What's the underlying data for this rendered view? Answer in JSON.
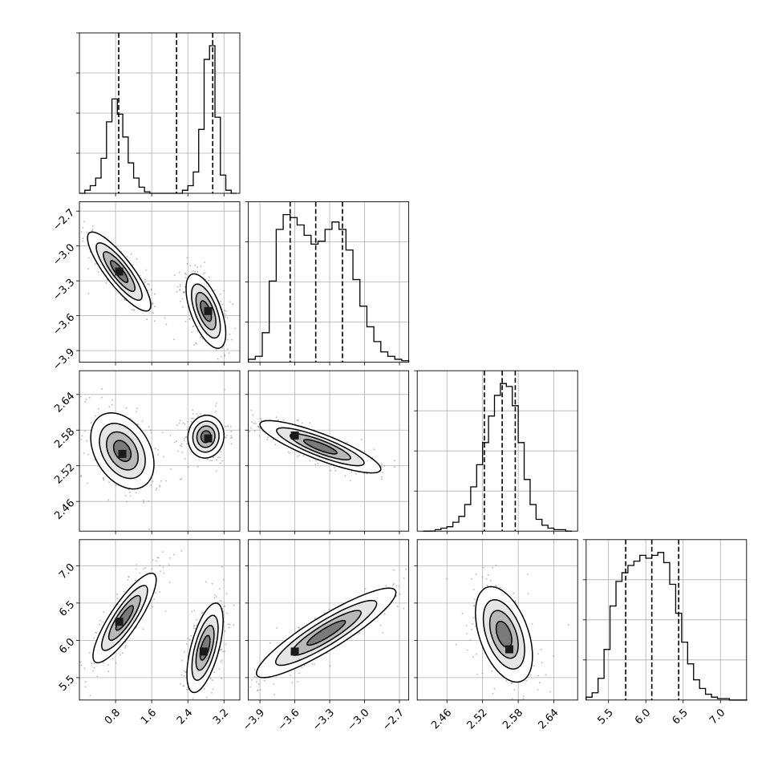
{
  "chart_data": {
    "type": "corner",
    "grid": true,
    "params": [
      {
        "range": [
          0.0,
          3.55
        ],
        "ticks": [
          "0.8",
          "1.6",
          "2.4",
          "3.2"
        ],
        "quantiles": [
          0.87,
          2.15,
          2.95
        ],
        "hist_bins": [
          0.06,
          0.18,
          0.3,
          0.42,
          0.54,
          0.66,
          0.78,
          0.9,
          1.02,
          1.14,
          1.26,
          1.38,
          1.5,
          1.62,
          1.74,
          1.86,
          1.98,
          2.1,
          2.22,
          2.34,
          2.46,
          2.58,
          2.7,
          2.82,
          2.94,
          3.06,
          3.18,
          3.3,
          3.42
        ],
        "hist_counts": [
          0,
          0.02,
          0.05,
          0.1,
          0.23,
          0.47,
          0.62,
          0.52,
          0.37,
          0.2,
          0.1,
          0.04,
          0.01,
          0,
          0,
          0,
          0,
          0,
          0,
          0.02,
          0.05,
          0.14,
          0.42,
          0.88,
          0.97,
          0.5,
          0.12,
          0.02,
          0
        ]
      },
      {
        "range": [
          -4.0,
          -2.62
        ],
        "ticks": [
          "−3.9",
          "−3.6",
          "−3.3",
          "−3.0",
          "−2.7"
        ],
        "quantiles": [
          -3.64,
          -3.42,
          -3.19
        ],
        "hist_bins": [
          -3.97,
          -3.91,
          -3.85,
          -3.79,
          -3.73,
          -3.67,
          -3.61,
          -3.55,
          -3.49,
          -3.43,
          -3.37,
          -3.31,
          -3.25,
          -3.19,
          -3.13,
          -3.07,
          -3.01,
          -2.95,
          -2.89,
          -2.83,
          -2.77,
          -2.71,
          -2.65
        ],
        "hist_counts": [
          0.02,
          0.04,
          0.2,
          0.55,
          0.9,
          1.0,
          0.98,
          0.93,
          0.86,
          0.8,
          0.82,
          0.9,
          0.95,
          0.9,
          0.76,
          0.56,
          0.38,
          0.24,
          0.14,
          0.07,
          0.04,
          0.02,
          0.01
        ]
      },
      {
        "range": [
          2.41,
          2.68
        ],
        "ticks": [
          "2.46",
          "2.52",
          "2.58",
          "2.64"
        ],
        "quantiles": [
          2.523,
          2.553,
          2.575
        ],
        "hist_bins": [
          2.425,
          2.435,
          2.445,
          2.455,
          2.465,
          2.475,
          2.485,
          2.495,
          2.505,
          2.515,
          2.525,
          2.535,
          2.545,
          2.555,
          2.565,
          2.575,
          2.585,
          2.595,
          2.605,
          2.615,
          2.625,
          2.635,
          2.645,
          2.655,
          2.665
        ],
        "hist_counts": [
          0,
          0,
          0.01,
          0.02,
          0.03,
          0.06,
          0.1,
          0.18,
          0.3,
          0.45,
          0.6,
          0.78,
          0.92,
          1.0,
          0.98,
          0.85,
          0.6,
          0.35,
          0.18,
          0.08,
          0.04,
          0.02,
          0.01,
          0.01,
          0
        ]
      },
      {
        "range": [
          5.2,
          7.35
        ],
        "ticks": [
          "5.5",
          "6.0",
          "6.5",
          "7.0"
        ],
        "quantiles": [
          5.73,
          6.08,
          6.44
        ],
        "hist_bins": [
          5.24,
          5.32,
          5.4,
          5.48,
          5.56,
          5.64,
          5.72,
          5.8,
          5.88,
          5.96,
          6.04,
          6.12,
          6.2,
          6.28,
          6.36,
          6.44,
          6.52,
          6.6,
          6.68,
          6.76,
          6.84,
          6.92,
          7.0,
          7.08,
          7.16,
          7.24,
          7.32
        ],
        "hist_counts": [
          0.02,
          0.05,
          0.15,
          0.35,
          0.65,
          0.82,
          0.88,
          0.93,
          0.96,
          1.0,
          0.98,
          1.0,
          1.02,
          0.95,
          0.8,
          0.6,
          0.4,
          0.25,
          0.14,
          0.08,
          0.04,
          0.02,
          0.01,
          0.01,
          0,
          0,
          0
        ]
      }
    ],
    "contours_2d": [
      {
        "row": 1,
        "col": 0,
        "clusters": [
          {
            "x": 0.88,
            "y": -3.22,
            "dx": 0.35,
            "dy": 0.17,
            "corr": -0.85,
            "peak": [
              0.88,
              -3.22
            ]
          },
          {
            "x": 2.8,
            "y": -3.56,
            "dx": 0.22,
            "dy": 0.16,
            "corr": -0.6,
            "peak": [
              2.85,
              -3.56
            ]
          }
        ]
      },
      {
        "row": 2,
        "col": 0,
        "clusters": [
          {
            "x": 0.95,
            "y": 2.545,
            "dx": 0.35,
            "dy": 0.032,
            "corr": -0.35,
            "peak": [
              0.95,
              2.54
            ]
          },
          {
            "x": 2.8,
            "y": 2.569,
            "dx": 0.2,
            "dy": 0.018,
            "corr": 0.05,
            "peak": [
              2.85,
              2.566
            ]
          }
        ]
      },
      {
        "row": 2,
        "col": 1,
        "clusters": [
          {
            "x": -3.38,
            "y": 2.552,
            "dx": 0.26,
            "dy": 0.022,
            "corr": -0.85,
            "peak": [
              -3.6,
              2.571
            ]
          }
        ]
      },
      {
        "row": 3,
        "col": 0,
        "clusters": [
          {
            "x": 1.0,
            "y": 6.3,
            "dx": 0.35,
            "dy": 0.3,
            "corr": 0.85,
            "peak": [
              0.88,
              6.25
            ]
          },
          {
            "x": 2.78,
            "y": 5.9,
            "dx": 0.2,
            "dy": 0.3,
            "corr": 0.6,
            "peak": [
              2.75,
              5.85
            ]
          }
        ]
      },
      {
        "row": 3,
        "col": 1,
        "clusters": [
          {
            "x": -3.33,
            "y": 6.1,
            "dx": 0.3,
            "dy": 0.3,
            "corr": 0.9,
            "peak": [
              -3.6,
              5.85
            ]
          }
        ]
      },
      {
        "row": 3,
        "col": 2,
        "clusters": [
          {
            "x": 2.556,
            "y": 6.08,
            "dx": 0.024,
            "dy": 0.32,
            "corr": -0.45,
            "peak": [
              2.565,
              5.88
            ]
          }
        ]
      }
    ],
    "colors": {
      "line": "#000000",
      "grid": "#b0b0b0",
      "points": "#7a7a7a",
      "fill_levels": [
        "#ffffff",
        "#e6e6e6",
        "#b8b8b8",
        "#7a7a7a"
      ],
      "density_peak": "#1a1a1a"
    }
  }
}
